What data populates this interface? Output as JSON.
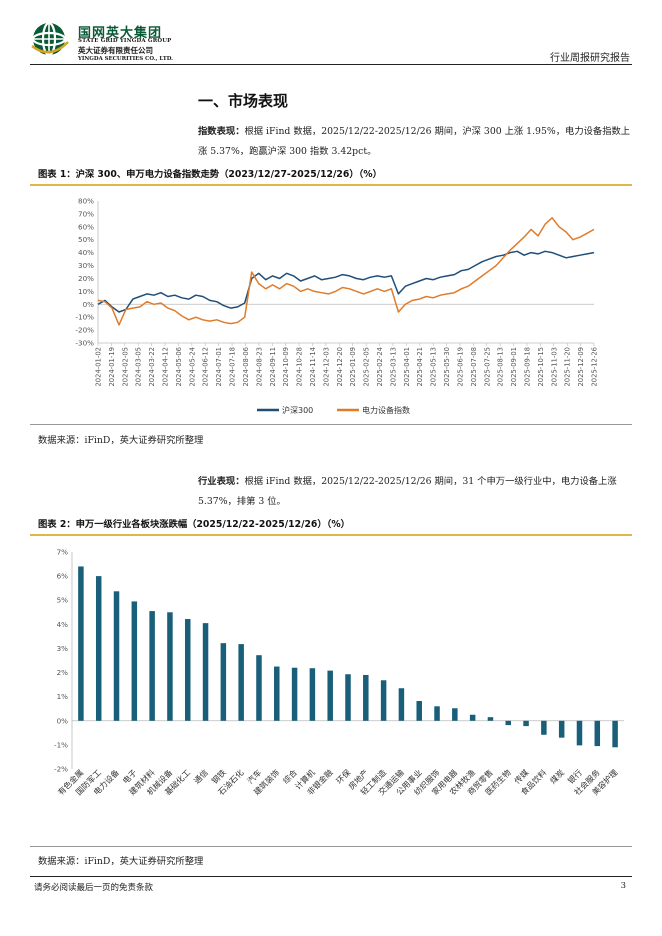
{
  "header": {
    "company_cn": "国网英大集团",
    "company_en": "STATE GRID YINGDA GROUP",
    "securities_cn": "英大证券有限责任公司",
    "securities_en": "YINGDA SECURITIES CO., LTD.",
    "report_type": "行业周报研究报告"
  },
  "section_title": "一、市场表现",
  "para1": {
    "lead": "指数表现：",
    "text": "根据 iFind 数据，2025/12/22-2025/12/26 期间，沪深 300 上涨 1.95%，电力设备指数上涨 5.37%，跑赢沪深 300 指数 3.42pct。"
  },
  "para2": {
    "lead": "行业表现：",
    "text": "根据 iFind 数据，2025/12/22-2025/12/26 期间，31 个申万一级行业中，电力设备上涨 5.37%，排第 3 位。"
  },
  "figure1": {
    "title": "图表 1：沪深 300、申万电力设备指数走势（2023/12/27-2025/12/26）（%）",
    "source": "数据来源：iFinD，英大证券研究所整理"
  },
  "figure2": {
    "title": "图表 2：申万一级行业各板块涨跌幅（2025/12/22-2025/12/26）（%）",
    "source": "数据来源：iFinD，英大证券研究所整理"
  },
  "footer": {
    "disclaimer": "请务必阅读最后一页的免责条款",
    "page": "3"
  },
  "colors": {
    "hs300": "#1f4e79",
    "power": "#e07b2a",
    "bar": "#1a5f7a",
    "accent": "#e0b64a",
    "logo_green": "#0a5a36"
  },
  "chart_data": [
    {
      "type": "line",
      "title": "沪深300、申万电力设备指数走势",
      "y_ticks": [
        "80%",
        "70%",
        "60%",
        "50%",
        "40%",
        "30%",
        "20%",
        "10%",
        "0%",
        "-10%",
        "-20%",
        "-30%"
      ],
      "ylim": [
        -30,
        80
      ],
      "x_ticks": [
        "2024-01-02",
        "2024-01-19",
        "2024-02-05",
        "2024-03-05",
        "2024-03-22",
        "2024-04-12",
        "2024-05-06",
        "2024-05-24",
        "2024-06-12",
        "2024-07-01",
        "2024-07-18",
        "2024-08-06",
        "2024-08-23",
        "2024-09-11",
        "2024-10-09",
        "2024-10-28",
        "2024-11-14",
        "2024-12-03",
        "2024-12-20",
        "2025-01-09",
        "2025-02-05",
        "2025-02-24",
        "2025-03-13",
        "2025-04-01",
        "2025-04-21",
        "2025-05-13",
        "2025-05-30",
        "2025-06-19",
        "2025-07-08",
        "2025-07-25",
        "2025-08-13",
        "2025-09-01",
        "2025-09-18",
        "2025-10-15",
        "2025-11-03",
        "2025-11-20",
        "2025-12-09",
        "2025-12-26"
      ],
      "series": [
        {
          "name": "沪深300",
          "color": "#1f4e79",
          "points": [
            [
              0,
              0
            ],
            [
              1,
              3
            ],
            [
              2,
              -2
            ],
            [
              3,
              -6
            ],
            [
              4,
              -4
            ],
            [
              5,
              4
            ],
            [
              6,
              6
            ],
            [
              7,
              8
            ],
            [
              8,
              7
            ],
            [
              9,
              9
            ],
            [
              10,
              6
            ],
            [
              11,
              7
            ],
            [
              12,
              5
            ],
            [
              13,
              4
            ],
            [
              14,
              7
            ],
            [
              15,
              6
            ],
            [
              16,
              3
            ],
            [
              17,
              2
            ],
            [
              18,
              -1
            ],
            [
              19,
              -3
            ],
            [
              20,
              -2
            ],
            [
              21,
              1
            ],
            [
              22,
              20
            ],
            [
              23,
              24
            ],
            [
              24,
              19
            ],
            [
              25,
              22
            ],
            [
              26,
              20
            ],
            [
              27,
              24
            ],
            [
              28,
              22
            ],
            [
              29,
              18
            ],
            [
              30,
              20
            ],
            [
              31,
              22
            ],
            [
              32,
              19
            ],
            [
              33,
              20
            ],
            [
              34,
              21
            ],
            [
              35,
              23
            ],
            [
              36,
              22
            ],
            [
              37,
              20
            ],
            [
              38,
              19
            ],
            [
              39,
              21
            ],
            [
              40,
              22
            ],
            [
              41,
              21
            ],
            [
              42,
              22
            ],
            [
              43,
              8
            ],
            [
              44,
              14
            ],
            [
              45,
              16
            ],
            [
              46,
              18
            ],
            [
              47,
              20
            ],
            [
              48,
              19
            ],
            [
              49,
              21
            ],
            [
              50,
              22
            ],
            [
              51,
              23
            ],
            [
              52,
              26
            ],
            [
              53,
              27
            ],
            [
              54,
              30
            ],
            [
              55,
              33
            ],
            [
              56,
              35
            ],
            [
              57,
              37
            ],
            [
              58,
              38
            ],
            [
              59,
              40
            ],
            [
              60,
              41
            ],
            [
              61,
              38
            ],
            [
              62,
              40
            ],
            [
              63,
              39
            ],
            [
              64,
              41
            ],
            [
              65,
              40
            ],
            [
              66,
              38
            ],
            [
              67,
              36
            ],
            [
              68,
              37
            ],
            [
              69,
              38
            ],
            [
              70,
              39
            ],
            [
              71,
              40
            ]
          ]
        },
        {
          "name": "电力设备指数",
          "color": "#e07b2a",
          "points": [
            [
              0,
              3
            ],
            [
              1,
              2
            ],
            [
              2,
              -3
            ],
            [
              3,
              -16
            ],
            [
              4,
              -4
            ],
            [
              5,
              -3
            ],
            [
              6,
              -2
            ],
            [
              7,
              2
            ],
            [
              8,
              0
            ],
            [
              9,
              1
            ],
            [
              10,
              -3
            ],
            [
              11,
              -5
            ],
            [
              12,
              -9
            ],
            [
              13,
              -12
            ],
            [
              14,
              -10
            ],
            [
              15,
              -12
            ],
            [
              16,
              -13
            ],
            [
              17,
              -12
            ],
            [
              18,
              -14
            ],
            [
              19,
              -15
            ],
            [
              20,
              -14
            ],
            [
              21,
              -10
            ],
            [
              22,
              25
            ],
            [
              23,
              16
            ],
            [
              24,
              12
            ],
            [
              25,
              15
            ],
            [
              26,
              12
            ],
            [
              27,
              16
            ],
            [
              28,
              14
            ],
            [
              29,
              10
            ],
            [
              30,
              12
            ],
            [
              31,
              10
            ],
            [
              32,
              9
            ],
            [
              33,
              8
            ],
            [
              34,
              10
            ],
            [
              35,
              13
            ],
            [
              36,
              12
            ],
            [
              37,
              10
            ],
            [
              38,
              8
            ],
            [
              39,
              10
            ],
            [
              40,
              12
            ],
            [
              41,
              10
            ],
            [
              42,
              12
            ],
            [
              43,
              -6
            ],
            [
              44,
              0
            ],
            [
              45,
              3
            ],
            [
              46,
              4
            ],
            [
              47,
              6
            ],
            [
              48,
              5
            ],
            [
              49,
              7
            ],
            [
              50,
              8
            ],
            [
              51,
              9
            ],
            [
              52,
              12
            ],
            [
              53,
              14
            ],
            [
              54,
              18
            ],
            [
              55,
              22
            ],
            [
              56,
              26
            ],
            [
              57,
              30
            ],
            [
              58,
              36
            ],
            [
              59,
              42
            ],
            [
              60,
              47
            ],
            [
              61,
              52
            ],
            [
              62,
              58
            ],
            [
              63,
              53
            ],
            [
              64,
              62
            ],
            [
              65,
              67
            ],
            [
              66,
              60
            ],
            [
              67,
              56
            ],
            [
              68,
              50
            ],
            [
              69,
              52
            ],
            [
              70,
              55
            ],
            [
              71,
              58
            ]
          ]
        }
      ],
      "legend": [
        "沪深300",
        "电力设备指数"
      ]
    },
    {
      "type": "bar",
      "title": "申万一级行业各板块涨跌幅",
      "y_ticks": [
        "7%",
        "6%",
        "5%",
        "4%",
        "3%",
        "2%",
        "1%",
        "0%",
        "-1%",
        "-2%"
      ],
      "ylim": [
        -2,
        7
      ],
      "categories": [
        "有色金属",
        "国防军工",
        "电力设备",
        "电子",
        "建筑材料",
        "机械设备",
        "基础化工",
        "通信",
        "钢铁",
        "石油石化",
        "汽车",
        "建筑装饰",
        "综合",
        "计算机",
        "非银金融",
        "环保",
        "房地产",
        "轻工制造",
        "交通运输",
        "公用事业",
        "纺织服饰",
        "家用电器",
        "农林牧渔",
        "商贸零售",
        "医药生物",
        "传媒",
        "食品饮料",
        "煤炭",
        "银行",
        "社会服务",
        "美容护理"
      ],
      "values": [
        6.4,
        6.0,
        5.37,
        4.95,
        4.55,
        4.5,
        4.22,
        4.05,
        3.22,
        3.18,
        2.72,
        2.25,
        2.2,
        2.18,
        2.08,
        1.93,
        1.9,
        1.68,
        1.35,
        0.82,
        0.6,
        0.52,
        0.25,
        0.15,
        -0.18,
        -0.22,
        -0.58,
        -0.7,
        -1.02,
        -1.05,
        -1.1
      ]
    }
  ]
}
